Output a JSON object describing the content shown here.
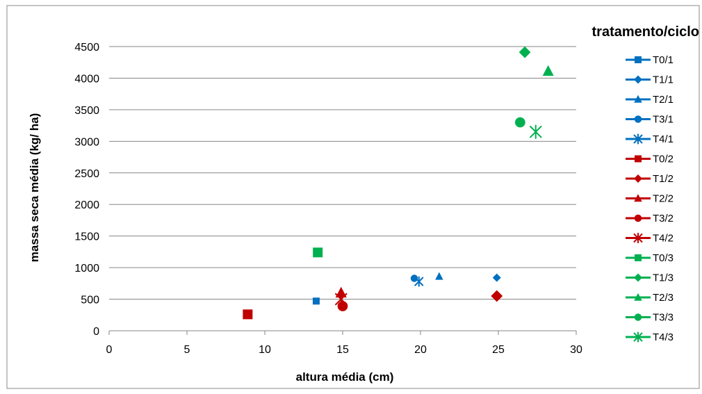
{
  "chart_data": {
    "type": "scatter",
    "title": "",
    "xlabel": "altura média (cm)",
    "ylabel": "massa seca média (kg/ ha)",
    "xlim": [
      0,
      30
    ],
    "ylim": [
      0,
      4500
    ],
    "xticks": [
      0,
      5,
      10,
      15,
      20,
      25,
      30
    ],
    "yticks": [
      0,
      500,
      1000,
      1500,
      2000,
      2500,
      3000,
      3500,
      4000,
      4500
    ],
    "grid": "horizontal",
    "legend_title": "tratamento/ciclo",
    "legend_position": "right",
    "series": [
      {
        "name": "T0/1",
        "color": "#0070C0",
        "marker": "square",
        "x": 13.3,
        "y": 470
      },
      {
        "name": "T1/1",
        "color": "#0070C0",
        "marker": "diamond",
        "x": 24.9,
        "y": 840
      },
      {
        "name": "T2/1",
        "color": "#0070C0",
        "marker": "triangle",
        "x": 21.2,
        "y": 860
      },
      {
        "name": "T3/1",
        "color": "#0070C0",
        "marker": "circle",
        "x": 19.6,
        "y": 830
      },
      {
        "name": "T4/1",
        "color": "#0070C0",
        "marker": "asterisk",
        "x": 19.9,
        "y": 780
      },
      {
        "name": "T0/2",
        "color": "#C00000",
        "marker": "square",
        "x": 8.9,
        "y": 260
      },
      {
        "name": "T1/2",
        "color": "#C00000",
        "marker": "diamond",
        "x": 24.9,
        "y": 550
      },
      {
        "name": "T2/2",
        "color": "#C00000",
        "marker": "triangle",
        "x": 14.9,
        "y": 600
      },
      {
        "name": "T3/2",
        "color": "#C00000",
        "marker": "circle",
        "x": 15.0,
        "y": 390
      },
      {
        "name": "T4/2",
        "color": "#C00000",
        "marker": "asterisk",
        "x": 14.9,
        "y": 500
      },
      {
        "name": "T0/3",
        "color": "#00B050",
        "marker": "square",
        "x": 13.4,
        "y": 1240
      },
      {
        "name": "T1/3",
        "color": "#00B050",
        "marker": "diamond",
        "x": 26.7,
        "y": 4410
      },
      {
        "name": "T2/3",
        "color": "#00B050",
        "marker": "triangle",
        "x": 28.2,
        "y": 4110
      },
      {
        "name": "T3/3",
        "color": "#00B050",
        "marker": "circle",
        "x": 26.4,
        "y": 3300
      },
      {
        "name": "T4/3",
        "color": "#00B050",
        "marker": "asterisk",
        "x": 27.4,
        "y": 3150
      }
    ]
  }
}
